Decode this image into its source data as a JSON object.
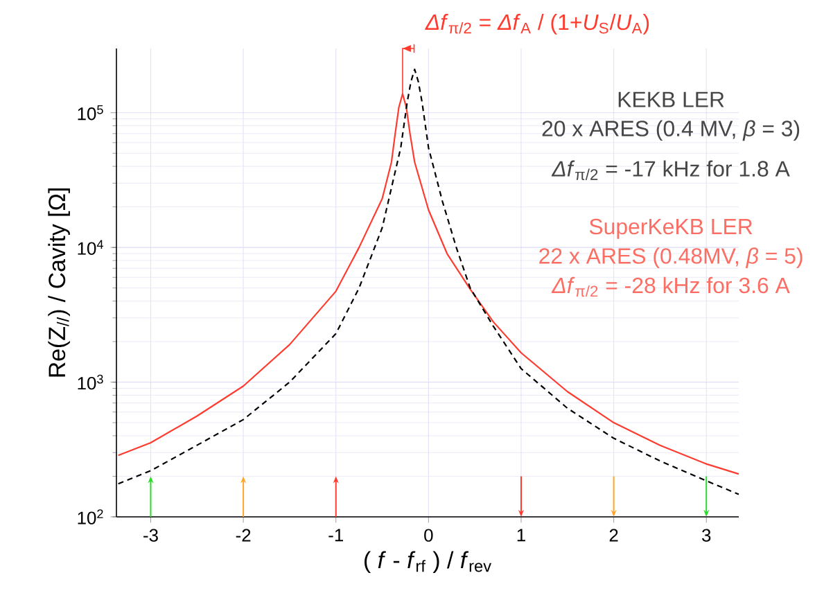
{
  "chart_data": {
    "type": "line",
    "xlabel": "( *f* - *f*$_{rf}$ ) / *f*$_{rev}$",
    "ylabel": "Re(Z$_{//}$) / Cavity [Ω]",
    "annotations": [
      "*Δf*$_{π/2}$  = *Δf*$_{A}$ / (1+*U*$_{S}$/*U*$_{A}$)",
      "KEKB LER",
      "20 x ARES (0.4 MV,  *β* = 3)",
      "*Δf*$_{π/2}$  = -17 kHz for 1.8 A",
      "SuperKeKB LER",
      "22 x ARES (0.48MV,  *β* = 5)",
      "*Δf*$_{π/2}$  = -28 kHz for 3.6 A"
    ],
    "series": [
      {
        "color": "#ff3b2f",
        "line_style": "solid",
        "x": [
          -3.35,
          -3,
          -2.5,
          -2,
          -1.5,
          -1,
          -0.75,
          -0.5,
          -0.4,
          -0.36,
          -0.32,
          -0.28,
          -0.24,
          -0.2,
          -0.15,
          0,
          0.2,
          0.45,
          0.7,
          1,
          1.5,
          2,
          2.5,
          3,
          3.35
        ],
        "values": [
          286,
          355,
          560,
          935,
          1900,
          4730,
          10000,
          23000,
          43000,
          70000,
          110000,
          138000,
          110000,
          70000,
          43000,
          19000,
          9000,
          4900,
          2800,
          1650,
          850,
          500,
          340,
          247,
          208
        ]
      },
      {
        "color": "#000000",
        "line_style": "dashed",
        "x": [
          -3.35,
          -3,
          -2.5,
          -2,
          -1.5,
          -1,
          -0.75,
          -0.5,
          -0.3,
          -0.23,
          -0.19,
          -0.15,
          -0.11,
          -0.07,
          0,
          0.15,
          0.3,
          0.45,
          0.7,
          1,
          1.5,
          2,
          2.5,
          3,
          3.35
        ],
        "values": [
          176,
          220,
          340,
          527,
          1000,
          2290,
          5000,
          14000,
          55000,
          120000,
          170000,
          210000,
          170000,
          120000,
          55000,
          22000,
          10000,
          5000,
          2600,
          1260,
          640,
          383,
          260,
          185,
          147
        ]
      }
    ],
    "xlim": [
      -3.37,
      3.35
    ],
    "ylim": [
      100,
      300000
    ],
    "xticks": [
      -3,
      -2,
      -1,
      0,
      1,
      2,
      3
    ],
    "yticks": [
      {
        "value": 100,
        "label": "10$^{2}$"
      },
      {
        "value": 1000,
        "label": "10$^{3}$"
      },
      {
        "value": 10000,
        "label": "10$^{4}$"
      },
      {
        "value": 100000,
        "label": "10$^{5}$"
      }
    ],
    "log": "y",
    "grid": true,
    "marker": "none"
  }
}
